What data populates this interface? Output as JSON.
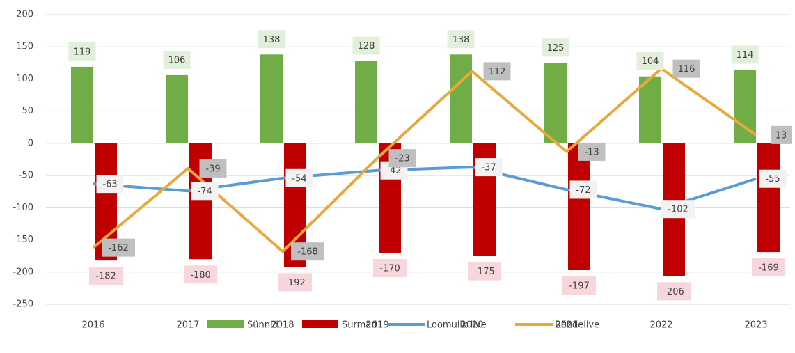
{
  "chart_data": {
    "type": "bar-line",
    "categories": [
      "2016",
      "2017",
      "2018",
      "2019",
      "2020",
      "2021",
      "2022",
      "2023"
    ],
    "series": [
      {
        "name": "Sünnid",
        "type": "bar",
        "color": "#70ad47",
        "label_bg": "#e2efda",
        "values": [
          119,
          106,
          138,
          128,
          138,
          125,
          104,
          114
        ]
      },
      {
        "name": "Surmad",
        "type": "bar",
        "color": "#c00000",
        "label_bg": "#f8d7dc",
        "values": [
          -182,
          -180,
          -192,
          -170,
          -175,
          -197,
          -206,
          -169
        ]
      },
      {
        "name": "Loomulik iive",
        "type": "line",
        "color": "#5b9bd5",
        "label_bg": "#f2f2f2",
        "values": [
          -63,
          -74,
          -54,
          -42,
          -37,
          -72,
          -102,
          -55
        ]
      },
      {
        "name": "Rändeiive",
        "type": "line",
        "color": "#e9a83a",
        "label_bg": "#bfbfbf",
        "values": [
          -162,
          -39,
          -168,
          -23,
          112,
          -13,
          116,
          13
        ]
      }
    ],
    "ylim": [
      -250,
      200
    ],
    "yticks": [
      -250,
      -200,
      -150,
      -100,
      -50,
      0,
      50,
      100,
      150,
      200
    ],
    "grid": true,
    "legend": "bottom"
  }
}
